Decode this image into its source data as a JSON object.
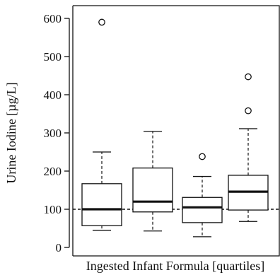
{
  "chart_data": {
    "type": "boxplot",
    "title": "",
    "xlabel": "Ingested Infant Formula [quartiles]",
    "ylabel": "Urine Iodine [µg/L]",
    "ylim": [
      -20,
      630
    ],
    "yticks": [
      0,
      100,
      200,
      300,
      400,
      500,
      600
    ],
    "ytick_labels": [
      "0",
      "100",
      "200",
      "300",
      "400",
      "500",
      "600"
    ],
    "reference_line": {
      "y": 100,
      "style": "dashed"
    },
    "grid": false,
    "legend": "none",
    "colors": {
      "box_fill": "#ffffff",
      "stroke": "#111111"
    },
    "boxes": [
      {
        "whisker_low": 45,
        "q1": 57,
        "median": 100,
        "q3": 167,
        "whisker_high": 250,
        "outliers": [
          590
        ]
      },
      {
        "whisker_low": 43,
        "q1": 93,
        "median": 120,
        "q3": 208,
        "whisker_high": 304,
        "outliers": []
      },
      {
        "whisker_low": 28,
        "q1": 65,
        "median": 105,
        "q3": 131,
        "whisker_high": 186,
        "outliers": [
          238
        ]
      },
      {
        "whisker_low": 68,
        "q1": 98,
        "median": 146,
        "q3": 189,
        "whisker_high": 311,
        "outliers": [
          358,
          447
        ]
      }
    ]
  }
}
